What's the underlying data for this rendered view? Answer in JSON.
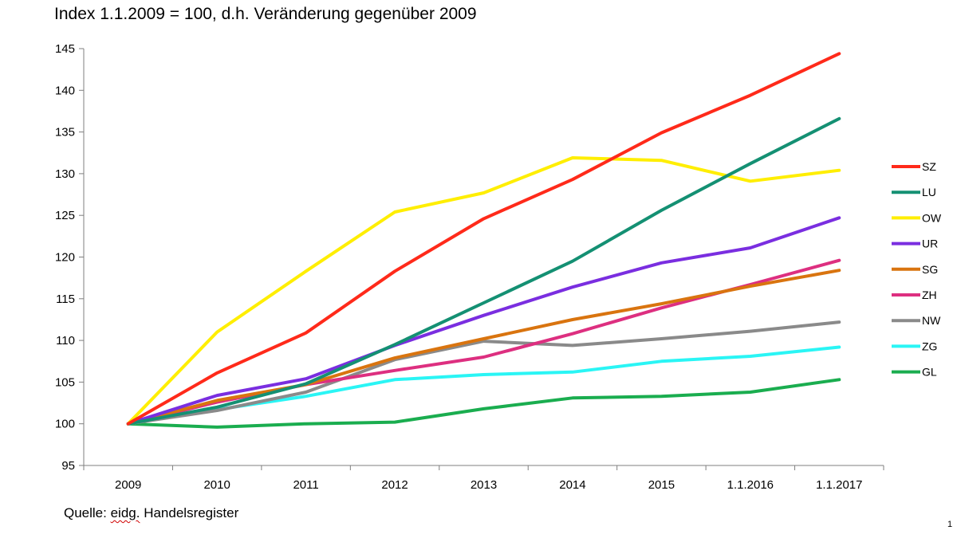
{
  "title": "Index 1.1.2009 = 100, d.h. Veränderung gegenüber 2009",
  "source": {
    "prefix": "Quelle: ",
    "underlined": "eidg.",
    "suffix": " Handelsregister"
  },
  "page_number": "1",
  "chart_data": {
    "type": "line",
    "title": "Index 1.1.2009 = 100, d.h. Veränderung gegenüber 2009",
    "xlabel": "",
    "ylabel": "",
    "categories": [
      "2009",
      "2010",
      "2011",
      "2012",
      "2013",
      "2014",
      "2015",
      "1.1.2016",
      "1.1.2017"
    ],
    "ylim": [
      95,
      145
    ],
    "yticks": [
      95,
      100,
      105,
      110,
      115,
      120,
      125,
      130,
      135,
      140,
      145
    ],
    "grid": false,
    "legend": "right",
    "series": [
      {
        "name": "SZ",
        "color": "#ff2a1a",
        "values": [
          100,
          106.1,
          110.9,
          118.3,
          124.6,
          129.3,
          134.9,
          139.4,
          144.4
        ]
      },
      {
        "name": "LU",
        "color": "#149073",
        "values": [
          100,
          102.0,
          104.8,
          109.5,
          114.5,
          119.5,
          125.6,
          131.2,
          136.6
        ]
      },
      {
        "name": "OW",
        "color": "#ffee00",
        "values": [
          100,
          111.0,
          118.3,
          125.4,
          127.7,
          131.9,
          131.6,
          129.1,
          130.4
        ]
      },
      {
        "name": "UR",
        "color": "#7a2ee0",
        "values": [
          100,
          103.4,
          105.4,
          109.4,
          113.0,
          116.4,
          119.3,
          121.1,
          124.7
        ]
      },
      {
        "name": "SG",
        "color": "#d9740f",
        "values": [
          100,
          102.8,
          104.7,
          107.9,
          110.2,
          112.5,
          114.4,
          116.5,
          118.4
        ]
      },
      {
        "name": "ZH",
        "color": "#dd2f80",
        "values": [
          100,
          102.6,
          104.7,
          106.4,
          108.0,
          110.8,
          113.9,
          116.7,
          119.6
        ]
      },
      {
        "name": "NW",
        "color": "#8a8a8a",
        "values": [
          100,
          101.6,
          103.8,
          107.7,
          109.9,
          109.4,
          110.2,
          111.1,
          112.2
        ]
      },
      {
        "name": "ZG",
        "color": "#2af5f5",
        "values": [
          100,
          101.7,
          103.3,
          105.3,
          105.9,
          106.2,
          107.5,
          108.1,
          109.2
        ]
      },
      {
        "name": "GL",
        "color": "#1aad4f",
        "values": [
          100,
          99.6,
          100.0,
          100.2,
          101.8,
          103.1,
          103.3,
          103.8,
          105.3
        ]
      }
    ]
  }
}
